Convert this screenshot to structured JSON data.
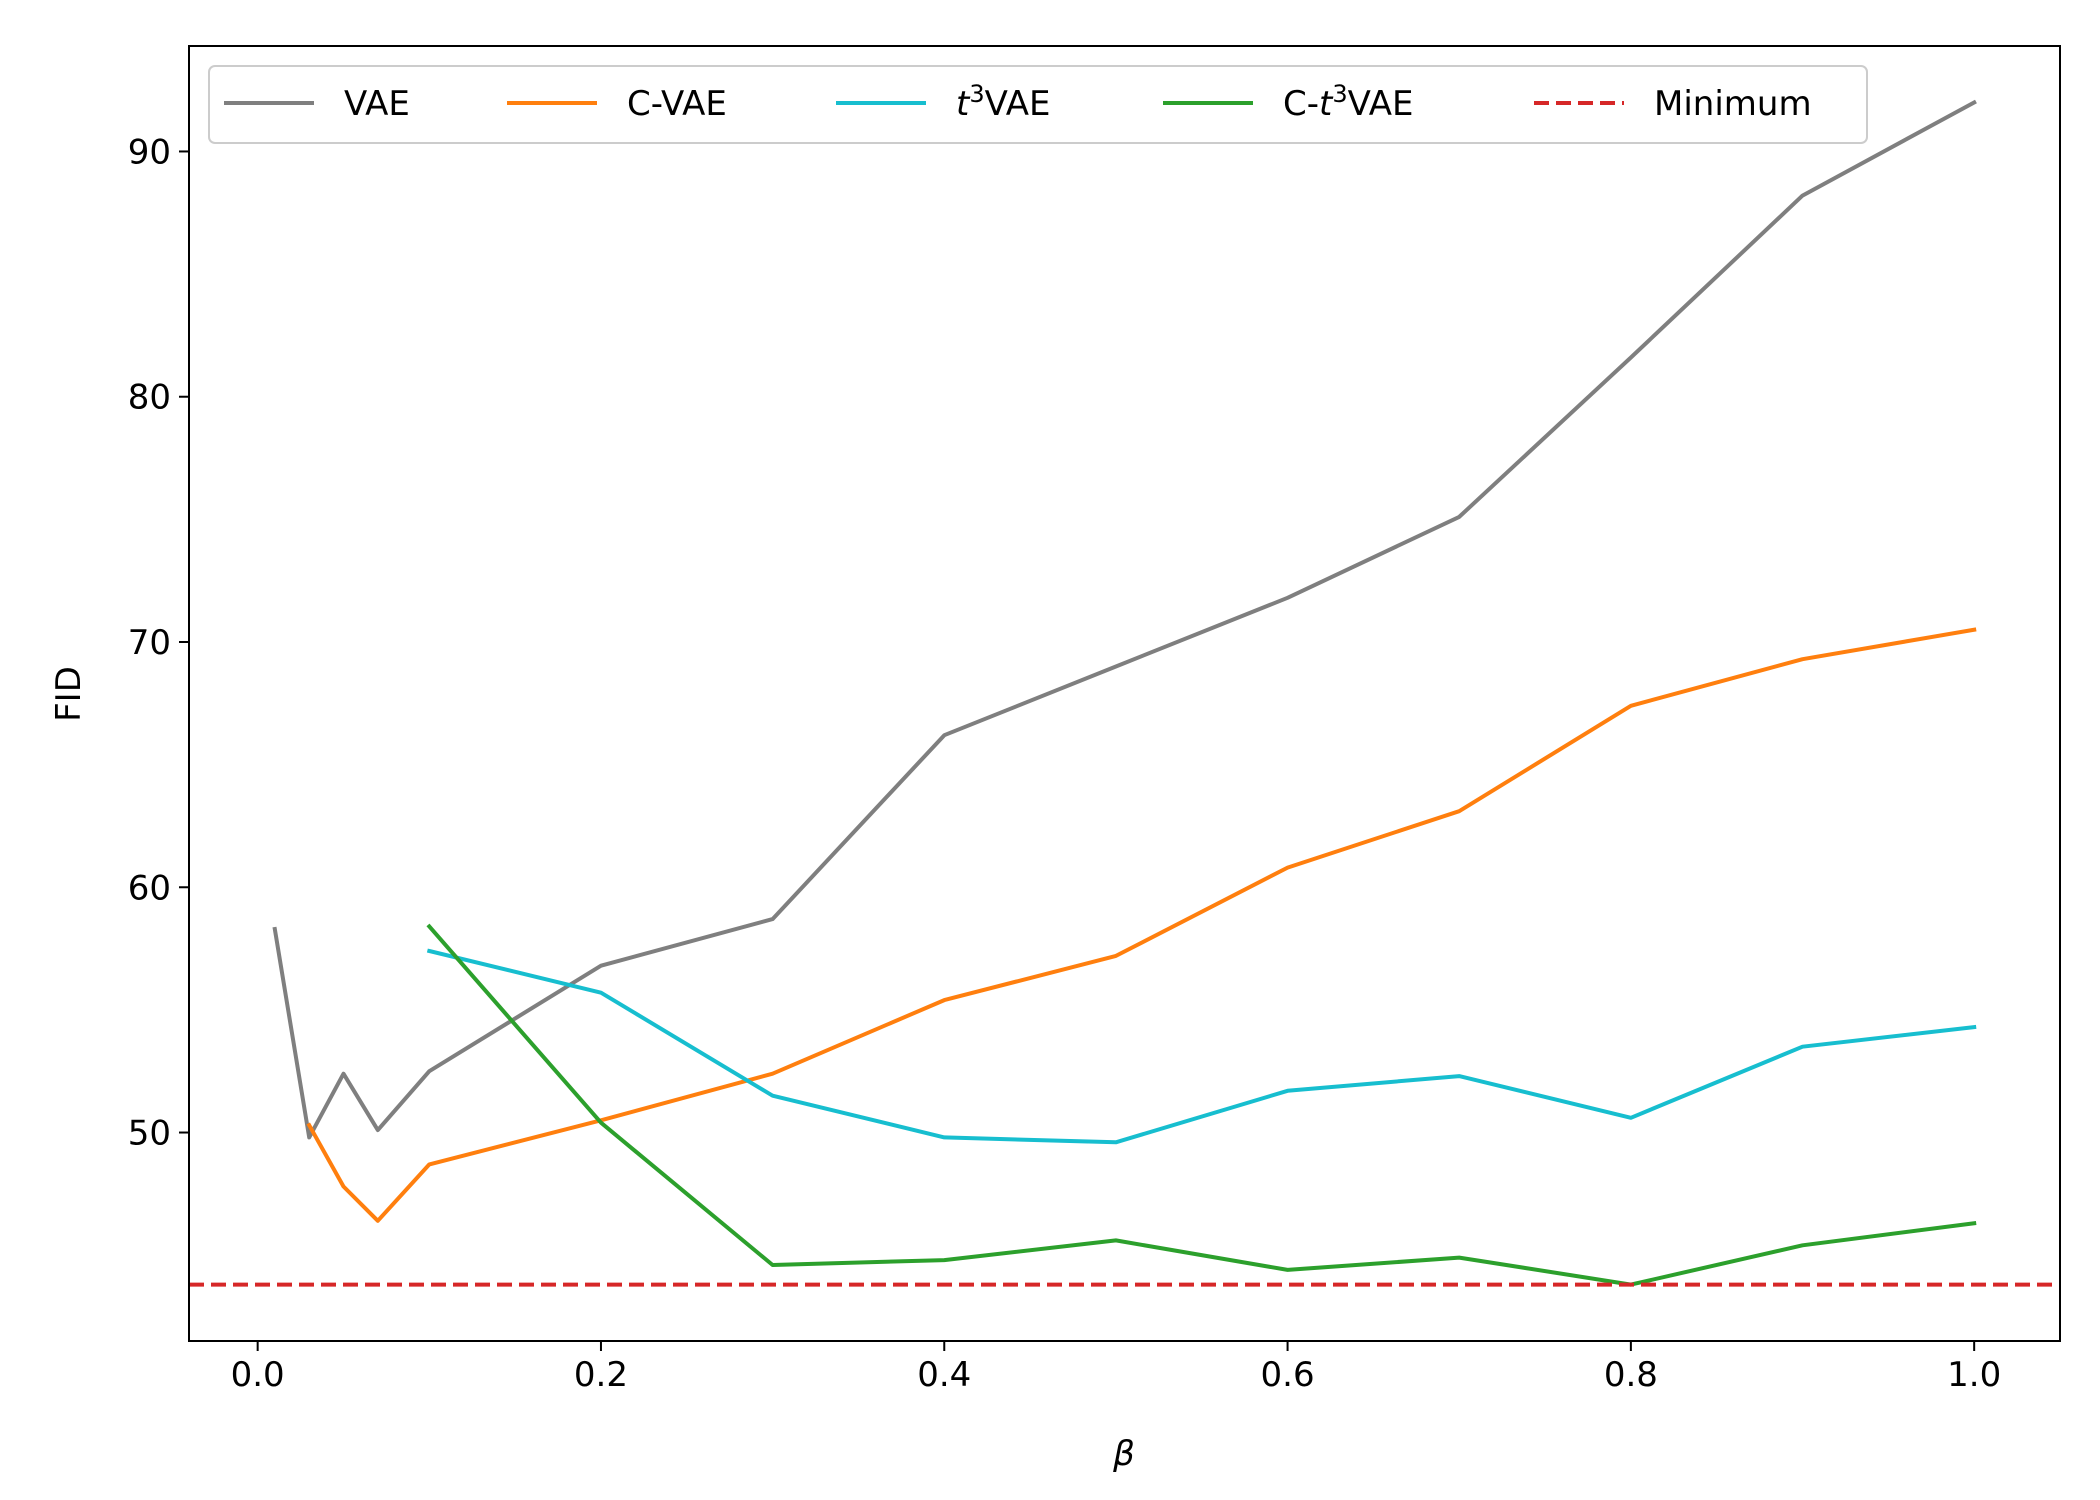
{
  "chart_data": {
    "type": "line",
    "xlabel": "β",
    "ylabel": "FID",
    "xlim": [
      -0.04,
      1.05
    ],
    "ylim": [
      41.5,
      94.3
    ],
    "xticks": [
      0.0,
      0.2,
      0.4,
      0.6,
      0.8,
      1.0
    ],
    "xtick_labels": [
      "0.0",
      "0.2",
      "0.4",
      "0.6",
      "0.8",
      "1.0"
    ],
    "yticks": [
      50,
      60,
      70,
      80,
      90
    ],
    "ytick_labels": [
      "50",
      "60",
      "70",
      "80",
      "90"
    ],
    "grid": false,
    "legend_position": "top, single row",
    "series": [
      {
        "name": "VAE",
        "label_main": "VAE",
        "label_pre": "",
        "label_sup": "",
        "color": "#7f7f7f",
        "dash": "solid",
        "x": [
          0.01,
          0.03,
          0.05,
          0.07,
          0.1,
          0.2,
          0.3,
          0.4,
          0.5,
          0.6,
          0.7,
          0.8,
          0.9,
          1.0
        ],
        "y": [
          58.3,
          49.8,
          52.4,
          50.1,
          52.5,
          56.8,
          58.7,
          66.2,
          69.0,
          71.8,
          75.1,
          81.6,
          88.2,
          92.0
        ]
      },
      {
        "name": "C-VAE",
        "label_main": "C-VAE",
        "label_pre": "",
        "label_sup": "",
        "color": "#ff7f0e",
        "dash": "solid",
        "x": [
          0.03,
          0.05,
          0.07,
          0.1,
          0.2,
          0.3,
          0.4,
          0.5,
          0.6,
          0.7,
          0.8,
          0.9,
          1.0
        ],
        "y": [
          50.3,
          47.8,
          46.4,
          48.7,
          50.5,
          52.4,
          55.4,
          57.2,
          60.8,
          63.1,
          67.4,
          69.3,
          70.5
        ]
      },
      {
        "name": "t3VAE",
        "label_main": "VAE",
        "label_pre": "t",
        "label_sup": "3",
        "color": "#17becf",
        "dash": "solid",
        "x": [
          0.1,
          0.2,
          0.3,
          0.4,
          0.5,
          0.6,
          0.7,
          0.8,
          0.9,
          1.0
        ],
        "y": [
          57.4,
          55.7,
          51.5,
          49.8,
          49.6,
          51.7,
          52.3,
          50.6,
          53.5,
          54.3
        ]
      },
      {
        "name": "C-t3VAE",
        "label_main": "VAE",
        "label_pre": "C-t",
        "label_sup": "3",
        "color": "#2ca02c",
        "dash": "solid",
        "x": [
          0.1,
          0.2,
          0.3,
          0.4,
          0.5,
          0.6,
          0.7,
          0.8,
          0.9,
          1.0
        ],
        "y": [
          58.4,
          50.4,
          44.6,
          44.8,
          45.6,
          44.4,
          44.9,
          43.8,
          45.4,
          46.3
        ]
      },
      {
        "name": "Minimum",
        "label_main": "Minimum",
        "label_pre": "",
        "label_sup": "",
        "color": "#d62728",
        "dash": "dashed",
        "x": [
          -0.04,
          1.05
        ],
        "y": [
          43.8,
          43.8
        ]
      }
    ]
  }
}
